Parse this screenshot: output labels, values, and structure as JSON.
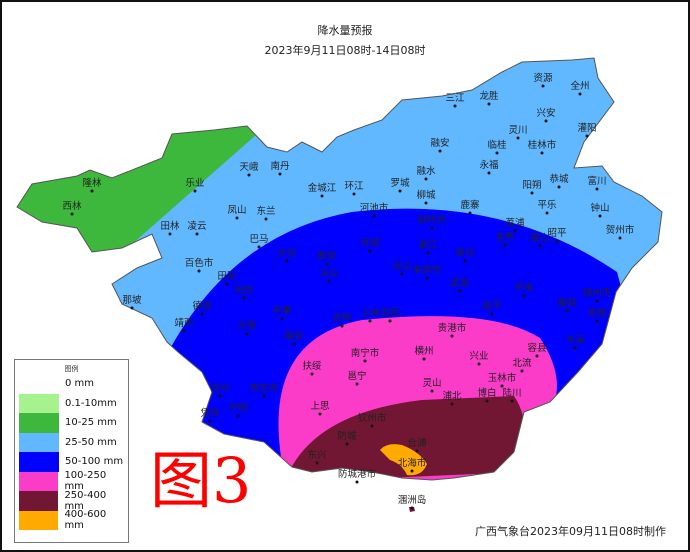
{
  "header": {
    "title": "降水量预报",
    "period": "2023年9月11日08时-14日08时"
  },
  "legend": {
    "title": "图例",
    "items": [
      {
        "label": "0 mm",
        "color": null
      },
      {
        "label": "0.1-10mm",
        "color": "#a6f28f"
      },
      {
        "label": "10-25 mm",
        "color": "#3db83d"
      },
      {
        "label": "25-50 mm",
        "color": "#61b8ff"
      },
      {
        "label": "50-100 mm",
        "color": "#0000fe"
      },
      {
        "label": "100-250 mm",
        "color": "#fa3cc8"
      },
      {
        "label": "250-400 mm",
        "color": "#711633"
      },
      {
        "label": "400-600 mm",
        "color": "#ffaa00"
      }
    ]
  },
  "figure_label": "图3",
  "footer": "广西气象台2023年09月11日08时制作",
  "cities": [
    "隆林",
    "西林",
    "乐业",
    "天峨",
    "南丹",
    "金城江",
    "环江",
    "凤山",
    "东兰",
    "凌云",
    "田林",
    "巴马",
    "百色市",
    "田阳",
    "田东",
    "那坡",
    "德保",
    "靖西",
    "天等",
    "平果",
    "隆安",
    "大化",
    "都安",
    "马山",
    "武鸣",
    "资源",
    "全州",
    "三江",
    "龙胜",
    "兴安",
    "灌阳",
    "灵川",
    "临桂",
    "桂林市",
    "融安",
    "融水",
    "永福",
    "罗城",
    "阳朔",
    "恭城",
    "富川",
    "平乐",
    "钟山",
    "贺州市",
    "河池市",
    "柳城",
    "鹿寨",
    "柳州市",
    "荔浦",
    "昭平",
    "忻城",
    "柳江",
    "金秀",
    "蒙山",
    "象州",
    "合山",
    "来宾市",
    "武宣",
    "平南",
    "梧州市",
    "藤县",
    "桂平",
    "上林",
    "宾阳",
    "苍梧",
    "岑溪",
    "贵港市",
    "容县",
    "南宁市",
    "横州",
    "兴业",
    "北流",
    "扶绥",
    "邕宁",
    "玉林市",
    "灵山",
    "博白",
    "陆川",
    "上思",
    "浦北",
    "钦州市",
    "防城",
    "合浦",
    "东兴",
    "防城港市",
    "北海市",
    "涠洲岛",
    "龙州",
    "凭祥",
    "宁明",
    "崇左市"
  ]
}
